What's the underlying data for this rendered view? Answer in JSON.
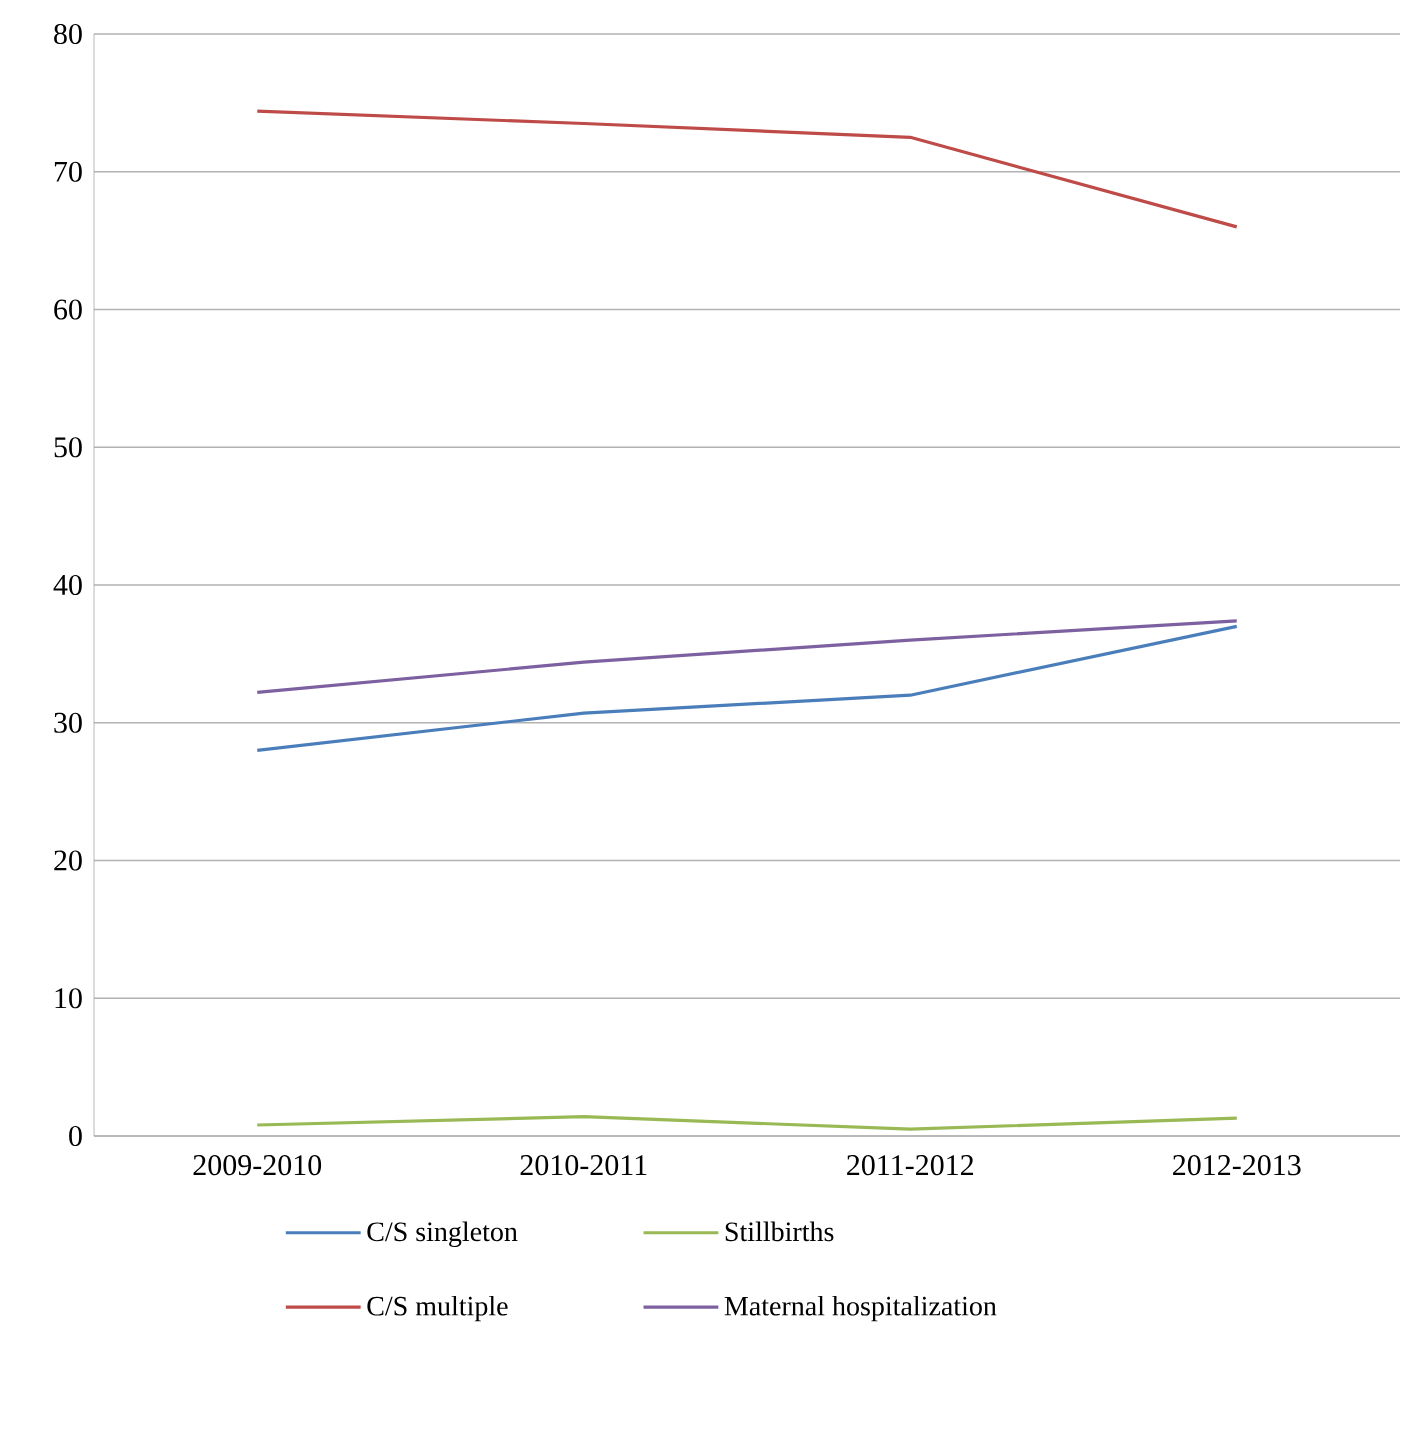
{
  "chart_data": {
    "type": "line",
    "categories": [
      "2009-2010",
      "2010-2011",
      "2011-2012",
      "2012-2013"
    ],
    "series": [
      {
        "name": "C/S singleton",
        "color": "#4a7ebb",
        "values": [
          28.0,
          30.7,
          32.0,
          37.0
        ]
      },
      {
        "name": "C/S multiple",
        "color": "#be4b48",
        "values": [
          74.4,
          73.5,
          72.5,
          66.0
        ]
      },
      {
        "name": "Stillbirths",
        "color": "#98b954",
        "values": [
          0.8,
          1.4,
          0.5,
          1.3
        ]
      },
      {
        "name": "Maternal hospitalization",
        "color": "#7d60a0",
        "values": [
          32.2,
          34.4,
          36.0,
          37.4
        ]
      }
    ],
    "ylim": [
      0,
      80
    ],
    "yticks": [
      0,
      10,
      20,
      30,
      40,
      50,
      60,
      70,
      80
    ],
    "grid": "y",
    "legend": "bottom",
    "marker": "none",
    "line_style": "solid"
  }
}
